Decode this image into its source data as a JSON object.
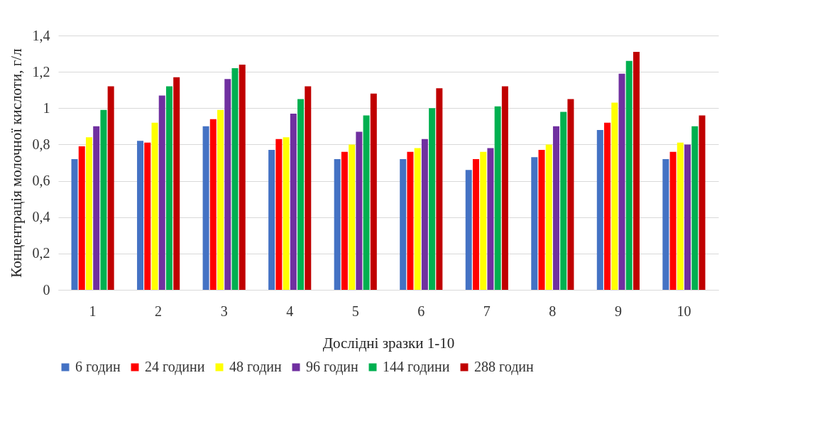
{
  "chart_data": {
    "type": "bar",
    "xlabel": "Дослідні зразки 1-10",
    "ylabel": "Концентрація молочної кислоти, г/л",
    "categories": [
      "1",
      "2",
      "3",
      "4",
      "5",
      "6",
      "7",
      "8",
      "9",
      "10"
    ],
    "series": [
      {
        "name": "6 годин",
        "color": "#4472c4",
        "values": [
          0.72,
          0.82,
          0.9,
          0.77,
          0.72,
          0.72,
          0.66,
          0.73,
          0.88,
          0.72
        ]
      },
      {
        "name": "24 години",
        "color": "#ff0000",
        "values": [
          0.79,
          0.81,
          0.94,
          0.83,
          0.76,
          0.76,
          0.72,
          0.77,
          0.92,
          0.76
        ]
      },
      {
        "name": "48 годин",
        "color": "#ffff00",
        "values": [
          0.84,
          0.92,
          0.99,
          0.84,
          0.8,
          0.78,
          0.76,
          0.8,
          1.03,
          0.81
        ]
      },
      {
        "name": "96 годин",
        "color": "#7030a0",
        "values": [
          0.9,
          1.07,
          1.16,
          0.97,
          0.87,
          0.83,
          0.78,
          0.9,
          1.19,
          0.8
        ]
      },
      {
        "name": "144 години",
        "color": "#00b050",
        "values": [
          0.99,
          1.12,
          1.22,
          1.05,
          0.96,
          1.0,
          1.01,
          0.98,
          1.26,
          0.9
        ]
      },
      {
        "name": "288 годин",
        "color": "#c00000",
        "values": [
          1.12,
          1.17,
          1.24,
          1.12,
          1.08,
          1.11,
          1.12,
          1.05,
          1.31,
          0.96
        ]
      }
    ],
    "ylim": [
      0,
      1.4
    ],
    "yticks": [
      0,
      {
        "value": 0.2,
        "label": "0,2"
      },
      {
        "value": 0.4,
        "label": "0,4"
      },
      {
        "value": 0.6,
        "label": "0,6"
      },
      {
        "value": 0.8,
        "label": "0,8"
      },
      1,
      {
        "value": 1.2,
        "label": "1,2"
      },
      {
        "value": 1.4,
        "label": "1,4"
      }
    ],
    "grid": "y",
    "legend": "bottom"
  }
}
